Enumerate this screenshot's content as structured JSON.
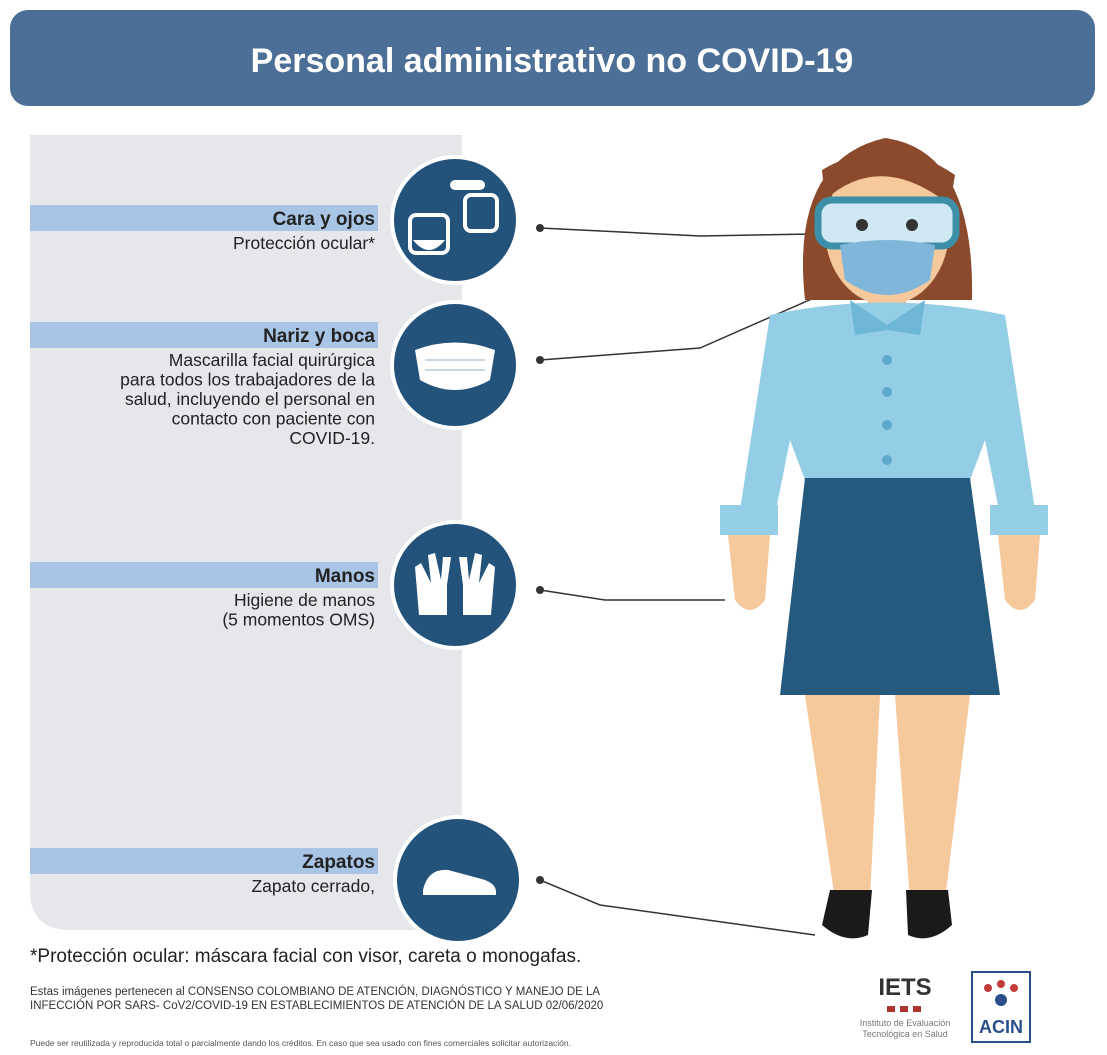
{
  "header": {
    "title": "Personal administrativo no COVID-19"
  },
  "items": [
    {
      "label": "Cara y ojos",
      "description": [
        "Protección ocular*"
      ]
    },
    {
      "label": "Nariz y boca",
      "description": [
        "Mascarilla facial quirúrgica",
        "para todos los trabajadores de la",
        "salud, incluyendo el personal en",
        "contacto con paciente con",
        "COVID-19."
      ]
    },
    {
      "label": "Manos",
      "description": [
        "Higiene de manos",
        "(5 momentos OMS)"
      ]
    },
    {
      "label": "Zapatos",
      "description": [
        "Zapato cerrado,"
      ]
    }
  ],
  "footnote": "*Protección ocular: máscara facial con visor, careta o monogafas.",
  "credits": [
    "Estas imágenes pertenecen al CONSENSO COLOMBIANO DE ATENCIÓN, DIAGNÓSTICO Y MANEJO DE LA",
    "INFECCIÓN POR SARS- CoV2/COVID-19 EN ESTABLECIMIENTOS DE ATENCIÓN DE LA SALUD 02/06/2020"
  ],
  "license": "Puede ser reutilizada y reproducida total o parcialmente dando los créditos. En caso que sea usado con fines comerciales solicitar autorización.",
  "logos": {
    "iets": "IETS",
    "iets_caption": [
      "Instituto de Evaluación",
      "Tecnológica en Salud"
    ],
    "acin": "ACIN"
  }
}
